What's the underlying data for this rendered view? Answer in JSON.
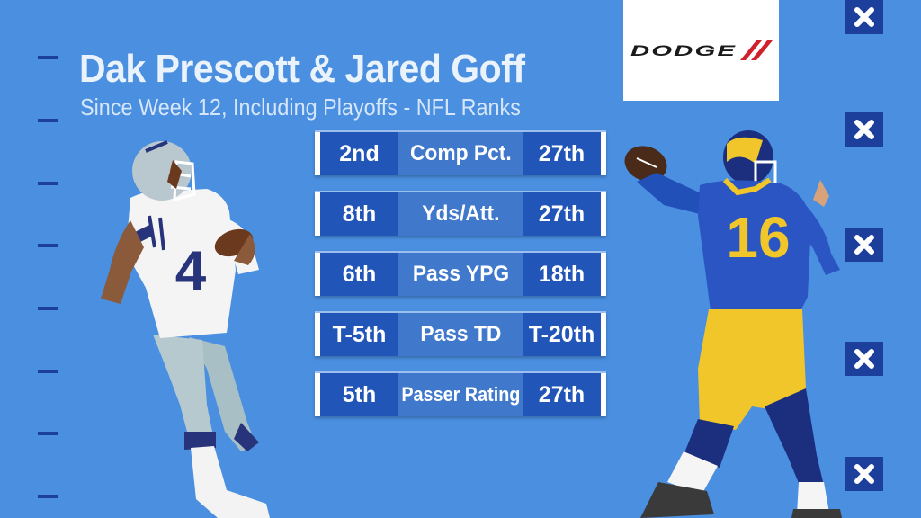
{
  "graphic": {
    "title": "Dak Prescott & Jared Goff",
    "subtitle": "Since Week 12, Including Playoffs - NFL Ranks"
  },
  "sponsor": {
    "name": "DODGE",
    "brand_color": "#d0202c"
  },
  "players": {
    "left": {
      "jersey_number": "4"
    },
    "right": {
      "jersey_number": "16"
    }
  },
  "stats": {
    "rows": [
      {
        "left_rank": "2nd",
        "category": "Comp Pct.",
        "right_rank": "27th"
      },
      {
        "left_rank": "8th",
        "category": "Yds/Att.",
        "right_rank": "27th"
      },
      {
        "left_rank": "6th",
        "category": "Pass YPG",
        "right_rank": "18th"
      },
      {
        "left_rank": "T-5th",
        "category": "Pass TD",
        "right_rank": "T-20th"
      },
      {
        "left_rank": "5th",
        "category": "Passer Rating",
        "right_rank": "27th"
      }
    ]
  },
  "colors": {
    "background": "#4a8fe0",
    "accent_dark": "#1d3f9c",
    "rank_cell": "#2155b8",
    "category_cell": "#4078cc"
  },
  "icons": {
    "field_marker": "x-mark-icon"
  }
}
